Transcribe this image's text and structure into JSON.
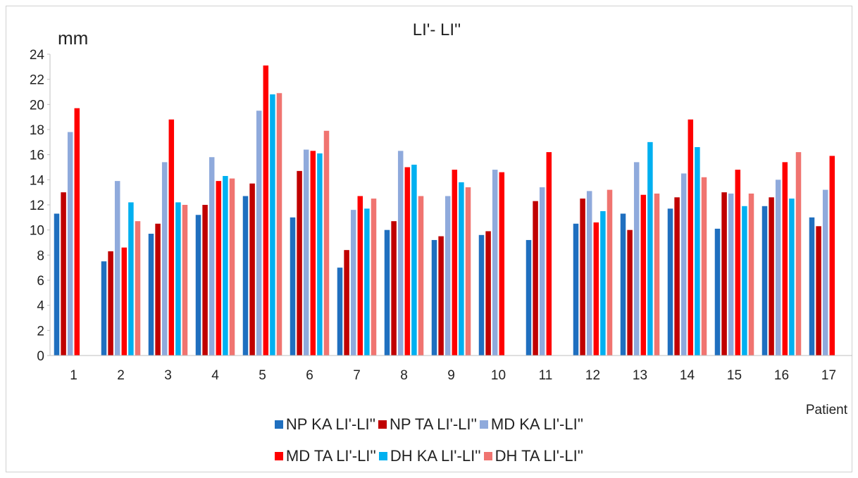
{
  "chart_data": {
    "type": "bar",
    "title": "LI'- LI''",
    "ylabel": "mm",
    "xlabel": "Patient",
    "ylim": [
      0,
      24
    ],
    "yticks": [
      0,
      2,
      4,
      6,
      8,
      10,
      12,
      14,
      16,
      18,
      20,
      22,
      24
    ],
    "grid": false,
    "legend_position": "bottom",
    "categories": [
      "1",
      "2",
      "3",
      "4",
      "5",
      "6",
      "7",
      "8",
      "9",
      "10",
      "11",
      "12",
      "13",
      "14",
      "15",
      "16",
      "17"
    ],
    "series": [
      {
        "name": "NP KA LI'-LI''",
        "color": "#1f6fbf",
        "values": [
          11.3,
          7.5,
          9.7,
          11.2,
          12.7,
          11.0,
          7.0,
          10.0,
          9.2,
          9.6,
          9.2,
          10.5,
          11.3,
          11.7,
          10.1,
          11.9,
          11.0
        ]
      },
      {
        "name": "NP TA LI'-LI''",
        "color": "#c00000",
        "values": [
          13.0,
          8.3,
          10.5,
          12.0,
          13.7,
          14.7,
          8.4,
          10.7,
          9.5,
          9.9,
          12.3,
          12.5,
          10.0,
          12.6,
          13.0,
          12.6,
          10.3
        ]
      },
      {
        "name": "MD KA LI'-LI''",
        "color": "#8faadc",
        "values": [
          17.8,
          13.9,
          15.4,
          15.8,
          19.5,
          16.4,
          11.6,
          16.3,
          12.7,
          14.8,
          13.4,
          13.1,
          15.4,
          14.5,
          12.9,
          14.0,
          13.2
        ]
      },
      {
        "name": "MD TA LI'-LI''",
        "color": "#ff0000",
        "values": [
          19.7,
          8.6,
          18.8,
          13.9,
          23.1,
          16.3,
          12.7,
          15.0,
          14.8,
          14.6,
          16.2,
          10.6,
          12.8,
          18.8,
          14.8,
          15.4,
          15.9
        ]
      },
      {
        "name": "DH KA LI'-LI''",
        "color": "#00b0f0",
        "values": [
          null,
          12.2,
          12.2,
          14.3,
          20.8,
          16.1,
          11.7,
          15.2,
          13.8,
          null,
          null,
          11.5,
          17.0,
          16.6,
          11.9,
          12.5,
          null
        ]
      },
      {
        "name": "DH TA LI'-LI''",
        "color": "#f07470",
        "values": [
          null,
          10.7,
          12.0,
          14.1,
          20.9,
          17.9,
          12.5,
          12.7,
          13.4,
          null,
          null,
          13.2,
          12.9,
          14.2,
          12.9,
          16.2,
          null
        ]
      }
    ]
  }
}
